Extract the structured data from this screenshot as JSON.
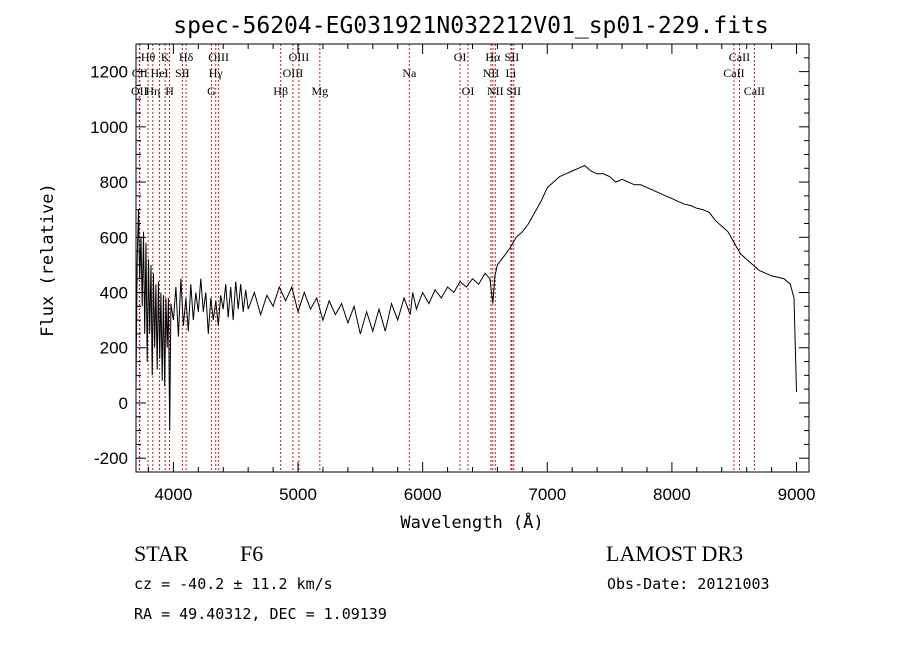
{
  "chart_data": {
    "type": "line",
    "title": "spec-56204-EG031921N032212V01_sp01-229.fits",
    "xlabel": "Wavelength (Å)",
    "ylabel": "Flux (relative)",
    "xlim": [
      3700,
      9100
    ],
    "ylim": [
      -250,
      1300
    ],
    "xticks": [
      "4000",
      "5000",
      "6000",
      "7000",
      "8000",
      "9000"
    ],
    "yticks": [
      "-200",
      "0",
      "200",
      "400",
      "600",
      "800",
      "1000",
      "1200"
    ],
    "spectral_lines": [
      {
        "label": "OII",
        "x": 3727,
        "row": 3
      },
      {
        "label": "Hθ",
        "x": 3797,
        "row": 1
      },
      {
        "label": "CII",
        "x": 3730,
        "row": 2
      },
      {
        "label": "Hη",
        "x": 3835,
        "row": 3
      },
      {
        "label": "HeI",
        "x": 3889,
        "row": 2
      },
      {
        "label": "K",
        "x": 3934,
        "row": 1
      },
      {
        "label": "H",
        "x": 3969,
        "row": 3
      },
      {
        "label": "SII",
        "x": 4072,
        "row": 2
      },
      {
        "label": "Hδ",
        "x": 4102,
        "row": 1
      },
      {
        "label": "OIII",
        "x": 4363,
        "row": 1
      },
      {
        "label": "Hγ",
        "x": 4340,
        "row": 2
      },
      {
        "label": "G",
        "x": 4305,
        "row": 3
      },
      {
        "label": "Hβ",
        "x": 4861,
        "row": 3
      },
      {
        "label": "OIII",
        "x": 5007,
        "row": 1
      },
      {
        "label": "OIII",
        "x": 4959,
        "row": 2
      },
      {
        "label": "Mg",
        "x": 5175,
        "row": 3
      },
      {
        "label": "Na",
        "x": 5893,
        "row": 2
      },
      {
        "label": "OI",
        "x": 6300,
        "row": 1
      },
      {
        "label": "OI",
        "x": 6364,
        "row": 3
      },
      {
        "label": "Hα",
        "x": 6563,
        "row": 1
      },
      {
        "label": "NII",
        "x": 6548,
        "row": 2
      },
      {
        "label": "NII",
        "x": 6583,
        "row": 3
      },
      {
        "label": "SII",
        "x": 6716,
        "row": 1
      },
      {
        "label": "Li",
        "x": 6708,
        "row": 2
      },
      {
        "label": "SII",
        "x": 6731,
        "row": 3
      },
      {
        "label": "CaII",
        "x": 8542,
        "row": 1
      },
      {
        "label": "CaII",
        "x": 8498,
        "row": 2
      },
      {
        "label": "CaII",
        "x": 8662,
        "row": 3
      }
    ],
    "series": [
      {
        "color": "#000000",
        "points": [
          [
            3700,
            50
          ],
          [
            3710,
            520
          ],
          [
            3720,
            700
          ],
          [
            3730,
            450
          ],
          [
            3740,
            600
          ],
          [
            3750,
            350
          ],
          [
            3760,
            620
          ],
          [
            3770,
            250
          ],
          [
            3780,
            580
          ],
          [
            3790,
            150
          ],
          [
            3800,
            520
          ],
          [
            3810,
            250
          ],
          [
            3820,
            500
          ],
          [
            3830,
            100
          ],
          [
            3840,
            470
          ],
          [
            3850,
            200
          ],
          [
            3860,
            430
          ],
          [
            3870,
            120
          ],
          [
            3880,
            440
          ],
          [
            3890,
            160
          ],
          [
            3900,
            400
          ],
          [
            3910,
            80
          ],
          [
            3920,
            390
          ],
          [
            3930,
            60
          ],
          [
            3940,
            380
          ],
          [
            3950,
            200
          ],
          [
            3960,
            380
          ],
          [
            3970,
            -100
          ],
          [
            3980,
            360
          ],
          [
            4000,
            300
          ],
          [
            4020,
            420
          ],
          [
            4040,
            240
          ],
          [
            4060,
            450
          ],
          [
            4080,
            280
          ],
          [
            4100,
            380
          ],
          [
            4120,
            260
          ],
          [
            4140,
            430
          ],
          [
            4160,
            300
          ],
          [
            4180,
            400
          ],
          [
            4200,
            330
          ],
          [
            4220,
            450
          ],
          [
            4240,
            330
          ],
          [
            4260,
            400
          ],
          [
            4280,
            250
          ],
          [
            4300,
            380
          ],
          [
            4320,
            300
          ],
          [
            4340,
            370
          ],
          [
            4360,
            280
          ],
          [
            4380,
            390
          ],
          [
            4400,
            340
          ],
          [
            4420,
            430
          ],
          [
            4440,
            310
          ],
          [
            4460,
            420
          ],
          [
            4480,
            300
          ],
          [
            4500,
            440
          ],
          [
            4520,
            340
          ],
          [
            4540,
            430
          ],
          [
            4560,
            330
          ],
          [
            4580,
            410
          ],
          [
            4600,
            340
          ],
          [
            4650,
            400
          ],
          [
            4700,
            320
          ],
          [
            4750,
            390
          ],
          [
            4800,
            350
          ],
          [
            4850,
            420
          ],
          [
            4900,
            370
          ],
          [
            4950,
            420
          ],
          [
            5000,
            330
          ],
          [
            5050,
            400
          ],
          [
            5100,
            340
          ],
          [
            5150,
            380
          ],
          [
            5200,
            300
          ],
          [
            5250,
            370
          ],
          [
            5300,
            320
          ],
          [
            5350,
            360
          ],
          [
            5400,
            290
          ],
          [
            5450,
            350
          ],
          [
            5500,
            250
          ],
          [
            5550,
            330
          ],
          [
            5600,
            260
          ],
          [
            5650,
            340
          ],
          [
            5700,
            260
          ],
          [
            5750,
            360
          ],
          [
            5800,
            300
          ],
          [
            5850,
            380
          ],
          [
            5900,
            320
          ],
          [
            5920,
            400
          ],
          [
            5950,
            340
          ],
          [
            6000,
            400
          ],
          [
            6050,
            360
          ],
          [
            6100,
            410
          ],
          [
            6150,
            380
          ],
          [
            6200,
            420
          ],
          [
            6250,
            400
          ],
          [
            6300,
            440
          ],
          [
            6350,
            420
          ],
          [
            6400,
            450
          ],
          [
            6450,
            430
          ],
          [
            6500,
            470
          ],
          [
            6540,
            450
          ],
          [
            6563,
            360
          ],
          [
            6580,
            460
          ],
          [
            6600,
            500
          ],
          [
            6650,
            530
          ],
          [
            6700,
            560
          ],
          [
            6750,
            600
          ],
          [
            6800,
            620
          ],
          [
            6850,
            650
          ],
          [
            6900,
            690
          ],
          [
            6950,
            730
          ],
          [
            7000,
            780
          ],
          [
            7050,
            800
          ],
          [
            7100,
            820
          ],
          [
            7150,
            830
          ],
          [
            7200,
            840
          ],
          [
            7250,
            850
          ],
          [
            7300,
            860
          ],
          [
            7350,
            840
          ],
          [
            7400,
            830
          ],
          [
            7450,
            830
          ],
          [
            7500,
            820
          ],
          [
            7550,
            800
          ],
          [
            7600,
            810
          ],
          [
            7650,
            800
          ],
          [
            7700,
            790
          ],
          [
            7750,
            790
          ],
          [
            7800,
            780
          ],
          [
            7850,
            770
          ],
          [
            7900,
            760
          ],
          [
            7950,
            750
          ],
          [
            8000,
            740
          ],
          [
            8050,
            730
          ],
          [
            8100,
            720
          ],
          [
            8150,
            715
          ],
          [
            8200,
            705
          ],
          [
            8250,
            700
          ],
          [
            8300,
            690
          ],
          [
            8350,
            660
          ],
          [
            8400,
            640
          ],
          [
            8450,
            620
          ],
          [
            8500,
            580
          ],
          [
            8550,
            540
          ],
          [
            8600,
            520
          ],
          [
            8650,
            500
          ],
          [
            8700,
            480
          ],
          [
            8750,
            470
          ],
          [
            8800,
            460
          ],
          [
            8850,
            455
          ],
          [
            8900,
            450
          ],
          [
            8950,
            430
          ],
          [
            8980,
            380
          ],
          [
            9000,
            40
          ]
        ]
      }
    ]
  },
  "info": {
    "object_class": "STAR",
    "subclass": "F6",
    "survey": "LAMOST DR3",
    "cz": "cz = -40.2 ± 11.2 km/s",
    "obs_date": "Obs-Date: 20121003",
    "coords": "RA =  49.40312, DEC =   1.09139"
  },
  "colors": {
    "line_markers": "#b22222",
    "spectrum": "#000000"
  }
}
